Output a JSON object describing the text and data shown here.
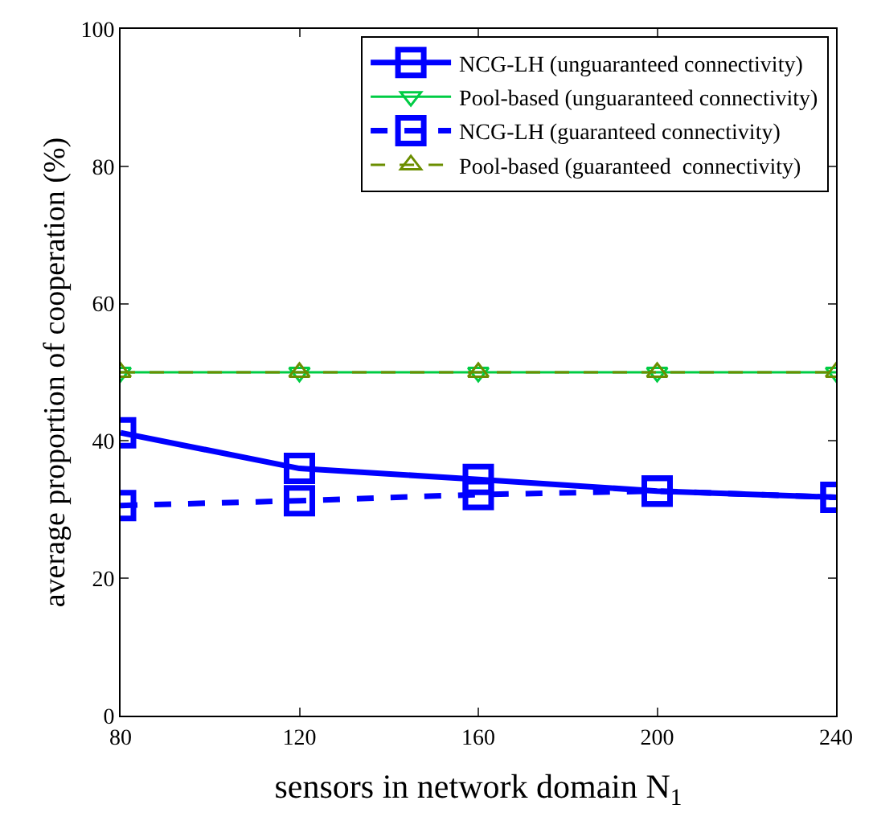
{
  "chart_data": {
    "type": "line",
    "xlabel": "sensors in network domain N$_{1}$",
    "ylabel": "average proportion of cooperation (%)",
    "x": [
      80,
      120,
      160,
      200,
      240
    ],
    "series": [
      {
        "name": "NCG-LH (unguaranteed connectivity)",
        "color": "#0000ff",
        "marker": "square",
        "line_style": "solid",
        "values": [
          41.2,
          36,
          34.4,
          32.7,
          31.8
        ]
      },
      {
        "name": "Pool-based (unguaranteed connectivity)",
        "color": "#00cc44",
        "marker": "triangle-down",
        "line_style": "solid",
        "values": [
          50,
          50,
          50,
          50,
          50
        ]
      },
      {
        "name": "NCG-LH (guaranteed connectivity)",
        "color": "#0000ff",
        "marker": "square",
        "line_style": "dashed",
        "values": [
          30.6,
          31.3,
          32.2,
          32.7,
          31.8
        ]
      },
      {
        "name": "Pool-based (guaranteed  connectivity)",
        "color": "#6b8e00",
        "marker": "triangle",
        "line_style": "dashed",
        "values": [
          50,
          50,
          50,
          50,
          50
        ]
      }
    ],
    "xlim": [
      80,
      240
    ],
    "xticks": [
      80,
      120,
      160,
      200,
      240
    ],
    "ylim": [
      0,
      100
    ],
    "yticks": [
      0,
      20,
      40,
      60,
      80,
      100
    ],
    "grid": false,
    "legend": "top right"
  }
}
